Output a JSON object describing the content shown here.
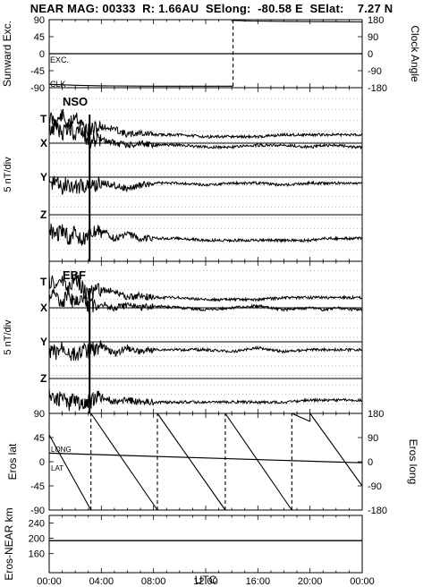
{
  "header": {
    "title": "NEAR MAG: 00333  R: 1.66AU  SElong:  -80.58 E  SElat:    7.27 N"
  },
  "chart_data": [
    {
      "type": "line",
      "panel": "clock",
      "ylabel": "Sunward Exc.",
      "ylabel_right": "Clock Angle",
      "ylim": [
        -90,
        90
      ],
      "yticks": [
        "90",
        "45",
        "0",
        "-45",
        "-90"
      ],
      "ylim_right": [
        -180,
        180
      ],
      "yticks_right": [
        "180",
        "90",
        "0",
        "-90",
        "-180"
      ],
      "annotations": [
        "EXC.",
        "CLK"
      ],
      "series": [
        {
          "name": "EXC.",
          "x": [
            0,
            24
          ],
          "y": [
            0,
            0
          ]
        },
        {
          "name": "CLK",
          "x": [
            0,
            2.0,
            4.0,
            8.0,
            14.1,
            14.1,
            15.5,
            18,
            24
          ],
          "y": [
            -162,
            -167,
            -170,
            -172,
            -172,
            176,
            173,
            171,
            168
          ]
        }
      ]
    },
    {
      "type": "line",
      "panel": "nso",
      "title": "NSO",
      "ylabel": "5 nT/div",
      "component_labels": [
        "T",
        "X",
        "Y",
        "Z"
      ],
      "series": [
        {
          "name": "T",
          "x": [
            0,
            0.5,
            1,
            1.5,
            2,
            2.5,
            3,
            4,
            5,
            6,
            7,
            8,
            10,
            12,
            14,
            16,
            18,
            20,
            21,
            22,
            23.5
          ],
          "y": [
            11,
            8,
            12,
            6,
            13,
            7,
            4,
            6,
            5,
            2,
            3,
            2,
            2,
            1,
            1,
            1,
            2,
            2,
            2,
            2,
            2
          ]
        },
        {
          "name": "X",
          "x": [
            0,
            0.5,
            1,
            1.5,
            2,
            2.5,
            3,
            4,
            5,
            6,
            7,
            8,
            10,
            12,
            14,
            16,
            18,
            20,
            21,
            22,
            23.5
          ],
          "y": [
            6,
            9,
            5,
            8,
            4,
            6,
            1,
            2,
            0,
            -1,
            0,
            -1,
            -1,
            -2,
            -2,
            -1,
            -1,
            -2,
            -1,
            -1,
            -2
          ]
        },
        {
          "name": "Y",
          "x": [
            0,
            0.5,
            1,
            1.5,
            2,
            2.5,
            3,
            4,
            5,
            6,
            7,
            8,
            10,
            12,
            14,
            16,
            18,
            20,
            21,
            22,
            23.5
          ],
          "y": [
            -4,
            -2,
            -5,
            -3,
            -6,
            -4,
            -5,
            -3,
            -4,
            -6,
            -4,
            -3,
            -3,
            -4,
            -3,
            -3,
            -4,
            -3,
            -3,
            -3,
            -3
          ]
        },
        {
          "name": "Z",
          "x": [
            0,
            0.5,
            1,
            1.5,
            2,
            2.5,
            3,
            4,
            5,
            6,
            7,
            8,
            10,
            12,
            14,
            16,
            18,
            20,
            21,
            22,
            23.5
          ],
          "y": [
            -7,
            -10,
            -8,
            -12,
            -9,
            -13,
            -11,
            -8,
            -12,
            -10,
            -12,
            -12,
            -12,
            -13,
            -13,
            -13,
            -13,
            -13,
            -12,
            -12,
            -12
          ]
        }
      ]
    },
    {
      "type": "line",
      "panel": "ebf",
      "title": "EBF",
      "ylabel": "5 nT/div",
      "component_labels": [
        "T",
        "X",
        "Y",
        "Z"
      ],
      "series": [
        {
          "name": "T",
          "x": [
            0,
            0.5,
            1,
            1.5,
            2,
            2.5,
            3,
            4,
            5,
            6,
            7,
            8,
            10,
            12,
            14,
            16,
            18,
            20,
            21,
            22,
            23.5
          ],
          "y": [
            11,
            8,
            12,
            6,
            13,
            7,
            4,
            6,
            5,
            2,
            3,
            2,
            2,
            1,
            1,
            1,
            2,
            2,
            2,
            2,
            2
          ]
        },
        {
          "name": "X",
          "x": [
            0,
            0.5,
            1,
            1.5,
            2,
            2.5,
            3,
            4,
            5,
            6,
            7,
            8,
            10,
            12,
            14,
            16,
            18,
            20,
            21,
            22,
            23.5
          ],
          "y": [
            4,
            7,
            3,
            6,
            2,
            5,
            1,
            2,
            0,
            1,
            0,
            1,
            0,
            -1,
            0,
            1,
            -1,
            0,
            -1,
            0,
            -1
          ]
        },
        {
          "name": "Y",
          "x": [
            0,
            0.5,
            1,
            1.5,
            2,
            2.5,
            3,
            4,
            5,
            6,
            7,
            8,
            10,
            12,
            14,
            16,
            18,
            20,
            21,
            22,
            23.5
          ],
          "y": [
            -4,
            -6,
            -3,
            -5,
            -7,
            -4,
            -5,
            -2,
            -6,
            -3,
            -5,
            -4,
            -4,
            -4,
            -5,
            -3,
            -5,
            -4,
            -4,
            -4,
            -4
          ]
        },
        {
          "name": "Z",
          "x": [
            0,
            0.5,
            1,
            1.5,
            2,
            2.5,
            3,
            4,
            5,
            6,
            7,
            8,
            10,
            12,
            14,
            16,
            18,
            20,
            21,
            22,
            23.5
          ],
          "y": [
            -8,
            -11,
            -9,
            -13,
            -10,
            -14,
            -12,
            -9,
            -12,
            -11,
            -12,
            -12,
            -12,
            -12,
            -12,
            -12,
            -12,
            -11,
            -11,
            -11,
            -11
          ]
        }
      ]
    },
    {
      "type": "line",
      "panel": "eros",
      "ylabel": "Eros lat",
      "ylabel_right": "Eros long",
      "ylim": [
        -90,
        90
      ],
      "yticks": [
        "90",
        "45",
        "0",
        "-45",
        "-90"
      ],
      "ylim_right": [
        -180,
        180
      ],
      "yticks_right": [
        "180",
        "90",
        "0",
        "-90",
        "-180"
      ],
      "annotations": [
        "LONG",
        "LAT"
      ],
      "series": [
        {
          "name": "LAT",
          "x": [
            0,
            24
          ],
          "y": [
            16,
            -2
          ]
        },
        {
          "name": "LONG",
          "x": [
            0,
            3.2,
            3.2,
            8.3,
            8.3,
            13.5,
            13.5,
            18.6,
            18.6,
            20,
            20,
            24
          ],
          "y": [
            100,
            -180,
            180,
            -180,
            180,
            -180,
            180,
            -180,
            180,
            150,
            180,
            -90
          ]
        }
      ]
    },
    {
      "type": "line",
      "panel": "distance",
      "ylabel": "Eros-NEAR km",
      "ylim": [
        110,
        260
      ],
      "yticks": [
        "240",
        "200",
        "160"
      ],
      "xlabel": "UTC",
      "xlim": [
        0,
        24
      ],
      "xticks": [
        "00:00",
        "04:00",
        "08:00",
        "12:00",
        "16:00",
        "20:00",
        "00:00"
      ],
      "series": [
        {
          "name": "Eros-NEAR km",
          "x": [
            0,
            24
          ],
          "y": [
            194,
            194
          ]
        }
      ]
    }
  ]
}
